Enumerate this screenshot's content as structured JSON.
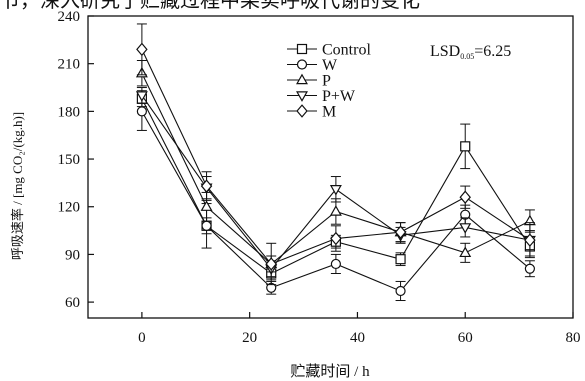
{
  "page": {
    "top_cut_text": "节，深入研究了贮藏过程中果实呼吸代谢的变化"
  },
  "chart_data": {
    "type": "line",
    "title": "",
    "xlabel": "贮藏时间 / h",
    "ylabel": "呼吸速率 / [mg CO₂/(kg.h)]",
    "xlim": [
      -10,
      80
    ],
    "ylim": [
      50,
      240
    ],
    "xticks": [
      0,
      20,
      40,
      60,
      80
    ],
    "yticks": [
      60,
      90,
      120,
      150,
      180,
      210,
      240
    ],
    "grid": false,
    "legend_position": "top-center",
    "annotation": {
      "main": "LSD",
      "sub": "0.05",
      "value": "=6.25"
    },
    "x": [
      0,
      12,
      24,
      36,
      48,
      60,
      72
    ],
    "series": [
      {
        "name": "Control",
        "marker": "square",
        "values": [
          188,
          108,
          78,
          98,
          87,
          158,
          95
        ],
        "err": [
          5,
          5,
          4,
          4,
          4,
          14,
          6
        ]
      },
      {
        "name": "W",
        "marker": "circle",
        "values": [
          180,
          108,
          69,
          84,
          67,
          115,
          81
        ],
        "err": [
          12,
          14,
          4,
          6,
          6,
          6,
          5
        ]
      },
      {
        "name": "P",
        "marker": "triangle-up",
        "values": [
          204,
          120,
          84,
          117,
          104,
          91,
          111
        ],
        "err": [
          8,
          9,
          5,
          8,
          6,
          6,
          7
        ]
      },
      {
        "name": "P+W",
        "marker": "triangle-down",
        "values": [
          190,
          132,
          81,
          131,
          102,
          107,
          99
        ],
        "err": [
          5,
          7,
          5,
          8,
          5,
          6,
          6
        ]
      },
      {
        "name": "M",
        "marker": "diamond",
        "values": [
          219,
          133,
          84,
          100,
          104,
          126,
          99
        ],
        "err": [
          16,
          9,
          13,
          8,
          6,
          7,
          11
        ]
      }
    ]
  }
}
